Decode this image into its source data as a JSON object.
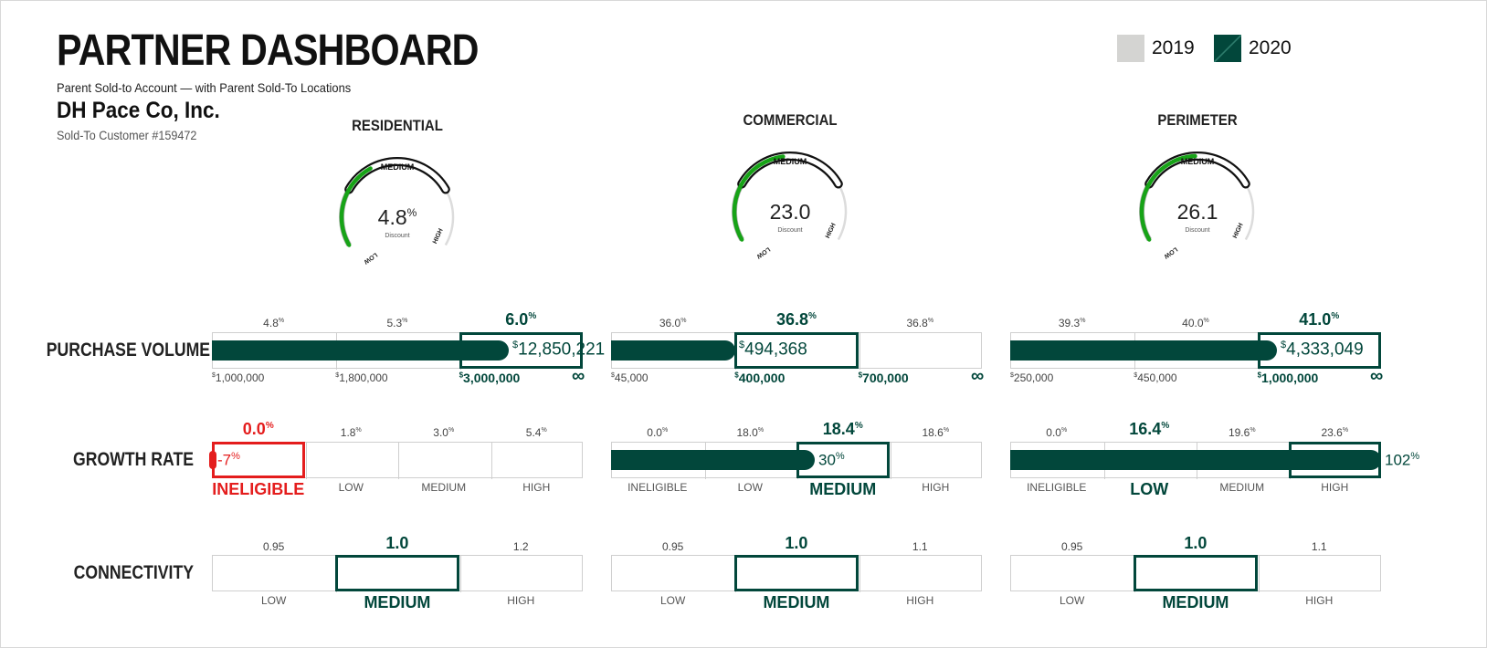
{
  "header": {
    "title": "PARTNER DASHBOARD",
    "subtitle": "Parent Sold-to Account — with Parent Sold-To Locations",
    "company": "DH Pace Co, Inc.",
    "customer_number": "Sold-To Customer #159472"
  },
  "legend": [
    {
      "label": "2019",
      "color": "#d4d4d2"
    },
    {
      "label": "2020",
      "color": "#02473b"
    }
  ],
  "colors": {
    "accent": "#02473b",
    "gauge_green": "#17a317",
    "alert_red": "#e41d1d",
    "gray_2019": "#d4d4d2"
  },
  "rows": {
    "purchase_volume": "PURCHASE VOLUME",
    "growth_rate": "GROWTH RATE",
    "connectivity": "CONNECTIVITY"
  },
  "categories": [
    {
      "name": "RESIDENTIAL",
      "gauge": {
        "value": "4.8",
        "unit": "%",
        "label": "Discount",
        "top": "MEDIUM",
        "left": "LOW",
        "right": "HIGH",
        "fill_fraction": 0.38
      },
      "purchase": {
        "tiers": [
          "4.8",
          "5.3",
          "6.0"
        ],
        "tier_unit": "%",
        "thresholds": [
          "1,000,000",
          "1,800,000",
          "3,000,000",
          "∞"
        ],
        "value": "12,850,221",
        "currency": "$",
        "highlight_tier": 2,
        "bar_fraction": 0.8
      },
      "growth": {
        "tiers": [
          "0.0",
          "1.8",
          "3.0",
          "5.4"
        ],
        "tier_unit": "%",
        "levels": [
          "INELIGIBLE",
          "LOW",
          "MEDIUM",
          "HIGH"
        ],
        "value": "-7",
        "value_unit": "%",
        "highlight_tier": 0,
        "bar_fraction": 0.0
      },
      "connectivity": {
        "tiers": [
          "0.95",
          "1.0",
          "1.2"
        ],
        "levels": [
          "LOW",
          "MEDIUM",
          "HIGH"
        ],
        "highlight_tier": 1
      }
    },
    {
      "name": "COMMERCIAL",
      "gauge": {
        "value": "23.0",
        "unit": "",
        "label": "Discount",
        "top": "MEDIUM",
        "left": "LOW",
        "right": "HIGH",
        "fill_fraction": 0.47
      },
      "purchase": {
        "tiers": [
          "36.0",
          "36.8",
          "36.8"
        ],
        "tier_unit": "%",
        "thresholds": [
          "45,000",
          "400,000",
          "700,000",
          "∞"
        ],
        "value": "494,368",
        "currency": "$",
        "highlight_tier": 1,
        "bar_fraction": 0.335
      },
      "growth": {
        "tiers": [
          "0.0",
          "18.0",
          "18.4",
          "18.6"
        ],
        "tier_unit": "%",
        "levels": [
          "INELIGIBLE",
          "LOW",
          "MEDIUM",
          "HIGH"
        ],
        "value": "30",
        "value_unit": "%",
        "highlight_tier": 2,
        "bar_fraction": 0.55
      },
      "connectivity": {
        "tiers": [
          "0.95",
          "1.0",
          "1.1"
        ],
        "levels": [
          "LOW",
          "MEDIUM",
          "HIGH"
        ],
        "highlight_tier": 1
      }
    },
    {
      "name": "PERIMETER",
      "gauge": {
        "value": "26.1",
        "unit": "",
        "label": "Discount",
        "top": "MEDIUM",
        "left": "LOW",
        "right": "HIGH",
        "fill_fraction": 0.49
      },
      "purchase": {
        "tiers": [
          "39.3",
          "40.0",
          "41.0"
        ],
        "tier_unit": "%",
        "thresholds": [
          "250,000",
          "450,000",
          "1,000,000",
          "∞"
        ],
        "value": "4,333,049",
        "currency": "$",
        "highlight_tier": 2,
        "bar_fraction": 0.72
      },
      "growth": {
        "tiers": [
          "0.0",
          "16.4",
          "19.6",
          "23.6"
        ],
        "tier_unit": "%",
        "levels": [
          "INELIGIBLE",
          "LOW",
          "MEDIUM",
          "HIGH"
        ],
        "value": "102",
        "value_unit": "%",
        "highlight_tier": 3,
        "highlight_label": 1,
        "bar_fraction": 1.0
      },
      "connectivity": {
        "tiers": [
          "0.95",
          "1.0",
          "1.1"
        ],
        "levels": [
          "LOW",
          "MEDIUM",
          "HIGH"
        ],
        "highlight_tier": 1
      }
    }
  ]
}
